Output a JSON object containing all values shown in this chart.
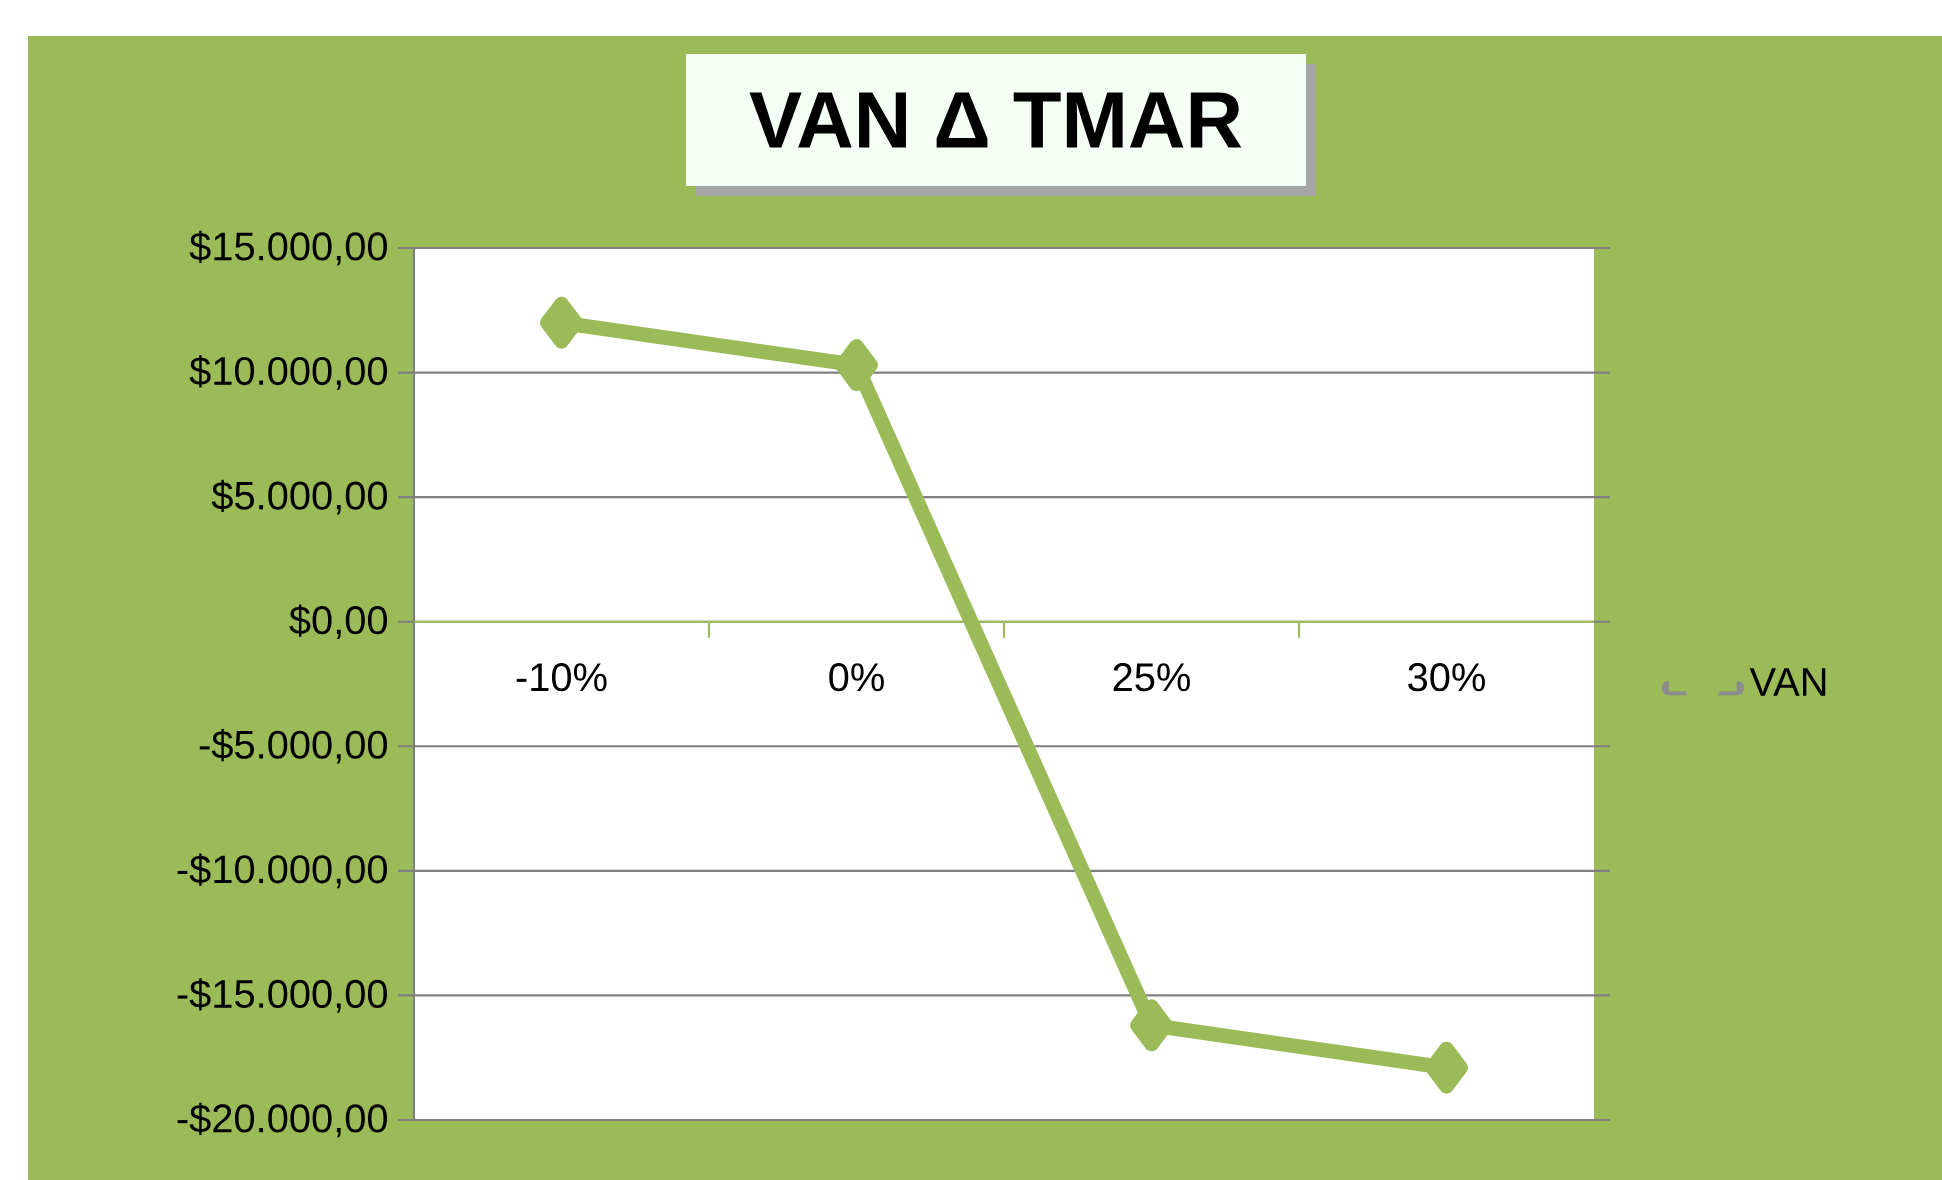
{
  "chart_data": {
    "type": "line",
    "title": "VAN Δ TMAR",
    "categories": [
      "-10%",
      "0%",
      "25%",
      "30%"
    ],
    "series": [
      {
        "name": "VAN",
        "color": "#9bbb59",
        "values": [
          12000,
          10300,
          -16200,
          -17900
        ]
      }
    ],
    "ylim": [
      -20000,
      15000
    ],
    "yticks": [
      {
        "value": -20000,
        "label": "-$20.000,00"
      },
      {
        "value": -15000,
        "label": "-$15.000,00"
      },
      {
        "value": -10000,
        "label": "-$10.000,00"
      },
      {
        "value": -5000,
        "label": "-$5.000,00"
      },
      {
        "value": 0,
        "label": "$0,00"
      },
      {
        "value": 5000,
        "label": "$5.000,00"
      },
      {
        "value": 10000,
        "label": "$10.000,00"
      },
      {
        "value": 15000,
        "label": "$15.000,00"
      }
    ],
    "grid": "y",
    "legend": "right",
    "marker": "diamond",
    "line_style": "solid"
  }
}
